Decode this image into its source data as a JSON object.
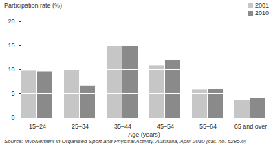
{
  "chart_data": {
    "type": "bar",
    "y_label": "Participation rate (%)",
    "x_label": "Age (years)",
    "caption": "Source: Involvement in Organised Sport and Physical Activity, Australia, April 2010 (cat. no. 6285.0)",
    "categories": [
      "15–24",
      "25–34",
      "35–44",
      "45–54",
      "55–64",
      "65 and over"
    ],
    "series": [
      {
        "name": "2001",
        "color": "#c6c6c6",
        "values": [
          9.8,
          10.0,
          15.0,
          10.8,
          5.8,
          3.6
        ]
      },
      {
        "name": "2010",
        "color": "#8a8a8a",
        "values": [
          9.5,
          6.6,
          15.0,
          11.9,
          6.0,
          4.1
        ]
      }
    ],
    "ylim": [
      0,
      20
    ],
    "yticks": [
      0,
      5,
      10,
      15,
      20
    ],
    "grid": true,
    "legend": "top-right"
  }
}
